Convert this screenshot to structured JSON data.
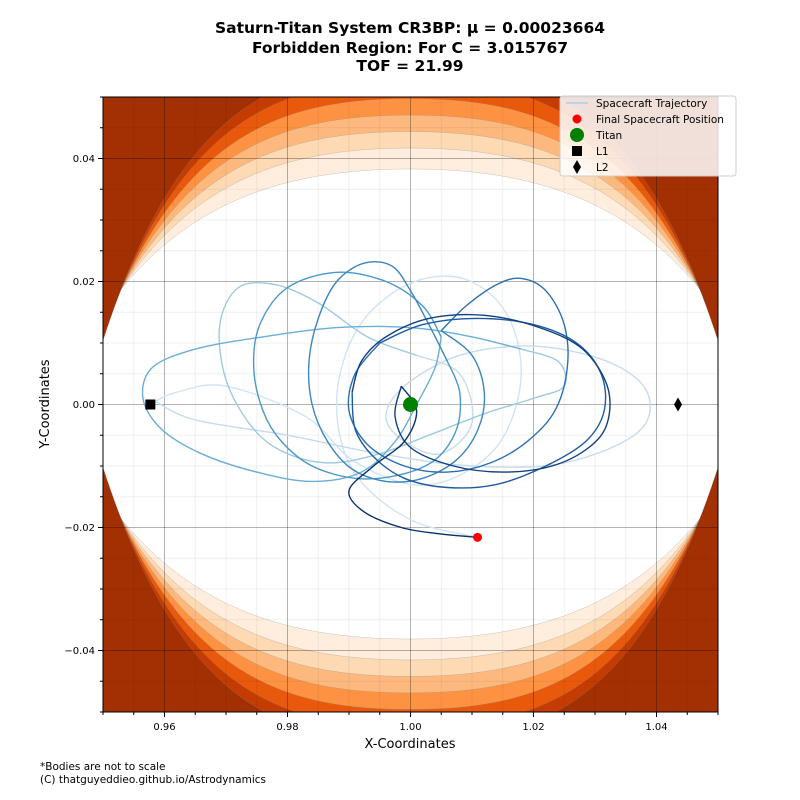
{
  "title": {
    "line1": "Saturn-Titan System CR3BP: μ = 0.00023664",
    "line2": "Forbidden Region: For C = 3.015767",
    "line3": "TOF = 21.99"
  },
  "footnote": {
    "line1": "*Bodies are not to scale",
    "line2": "(C) thatguyeddieo.github.io/Astrodynamics"
  },
  "chart_data": {
    "type": "contour",
    "xlabel": "X-Coordinates",
    "ylabel": "Y-Coordinates",
    "xlim": [
      0.95,
      1.05
    ],
    "ylim": [
      -0.05,
      0.05
    ],
    "x_ticks": [
      0.96,
      0.98,
      1.0,
      1.02,
      1.04
    ],
    "x_tick_labels": [
      "0.96",
      "0.98",
      "1.00",
      "1.02",
      "1.04"
    ],
    "y_ticks": [
      0.04,
      0.02,
      0.0,
      -0.02,
      -0.04
    ],
    "y_tick_labels": [
      "0.04",
      "0.02",
      "0.00",
      "−0.02",
      "−0.04"
    ],
    "grid": true,
    "legend_position": "upper-right",
    "legend": [
      {
        "label": "Spacecraft Trajectory",
        "marker": "line",
        "color": "#b8d5ea"
      },
      {
        "label": "Final Spacecraft Position",
        "marker": "circle",
        "color": "#ff0000"
      },
      {
        "label": "Titan",
        "marker": "circle-large",
        "color": "#008000"
      },
      {
        "label": "L1",
        "marker": "square",
        "color": "#000000"
      },
      {
        "label": "L2",
        "marker": "diamond",
        "color": "#000000"
      }
    ],
    "bodies": {
      "titan": {
        "x": 1.0,
        "y": 0.0
      },
      "l1": {
        "x": 0.9577,
        "y": 0.0
      },
      "l2": {
        "x": 1.0435,
        "y": 0.0
      },
      "final_position": {
        "x": 1.0109,
        "y": -0.0216
      }
    },
    "forbidden_region": {
      "levels": [
        {
          "size": 0.0,
          "color": "#ffeedd"
        },
        {
          "size": 0.19,
          "color": "#fdd9b4"
        },
        {
          "size": 0.34,
          "color": "#fdb97d"
        },
        {
          "size": 0.49,
          "color": "#fd9243"
        },
        {
          "size": 0.64,
          "color": "#e8590c"
        },
        {
          "size": 0.8,
          "color": "#c43c02"
        },
        {
          "size": 0.93,
          "color": "#a33003"
        }
      ],
      "allowed_region": {
        "center_x": 1.002,
        "center_y": 0.0,
        "semi_x": 0.0425,
        "semi_y": 0.0285,
        "fill": "#ffffff"
      }
    },
    "trajectory_segments": [
      {
        "color": "#d2e3f3",
        "points": [
          [
            1.0109,
            -0.0216
          ],
          [
            0.9995,
            -0.0185
          ],
          [
            0.9905,
            -0.0105
          ],
          [
            0.988,
            0.001
          ],
          [
            0.9915,
            0.0125
          ],
          [
            0.9995,
            0.0195
          ],
          [
            1.0085,
            0.0205
          ],
          [
            1.0155,
            0.015
          ],
          [
            1.018,
            0.005
          ],
          [
            1.015,
            -0.0055
          ],
          [
            1.008,
            -0.0115
          ],
          [
            1.0,
            -0.013
          ],
          [
            0.9905,
            -0.009
          ],
          [
            0.983,
            -0.002
          ],
          [
            0.97,
            0.003
          ],
          [
            0.962,
            0.002
          ],
          [
            0.9585,
            0.0005
          ]
        ]
      },
      {
        "color": "#c6dbef",
        "points": [
          [
            0.9585,
            0.0005
          ],
          [
            0.965,
            -0.0025
          ],
          [
            0.98,
            -0.005
          ],
          [
            0.995,
            -0.008
          ],
          [
            1.01,
            -0.01
          ],
          [
            1.025,
            -0.0095
          ],
          [
            1.037,
            -0.0045
          ],
          [
            1.0385,
            0.002
          ],
          [
            1.032,
            0.007
          ],
          [
            1.02,
            0.0095
          ],
          [
            1.008,
            0.008
          ],
          [
            0.999,
            0.003
          ],
          [
            0.996,
            -0.002
          ],
          [
            0.999,
            -0.006
          ],
          [
            1.005,
            -0.008
          ],
          [
            1.01,
            -0.003
          ],
          [
            1.008,
            0.005
          ],
          [
            1.001,
            0.008
          ]
        ]
      },
      {
        "color": "#9ecae1",
        "points": [
          [
            1.001,
            0.008
          ],
          [
            0.993,
            0.011
          ],
          [
            0.985,
            0.0165
          ],
          [
            0.978,
            0.0195
          ],
          [
            0.972,
            0.019
          ],
          [
            0.969,
            0.013
          ],
          [
            0.97,
            0.004
          ],
          [
            0.9745,
            -0.004
          ],
          [
            0.98,
            -0.008
          ],
          [
            0.987,
            -0.0095
          ],
          [
            0.995,
            -0.008
          ],
          [
            1.003,
            -0.005
          ],
          [
            1.012,
            -0.0015
          ],
          [
            1.02,
            0.001
          ],
          [
            1.025,
            0.003
          ],
          [
            1.024,
            0.007
          ],
          [
            1.018,
            0.009
          ]
        ]
      },
      {
        "color": "#6baed6",
        "points": [
          [
            1.018,
            0.009
          ],
          [
            1.01,
            0.011
          ],
          [
            1.0,
            0.0125
          ],
          [
            0.988,
            0.0125
          ],
          [
            0.976,
            0.011
          ],
          [
            0.965,
            0.009
          ],
          [
            0.958,
            0.006
          ],
          [
            0.9565,
            0.001
          ],
          [
            0.9595,
            -0.004
          ],
          [
            0.966,
            -0.008
          ],
          [
            0.975,
            -0.011
          ],
          [
            0.984,
            -0.0125
          ],
          [
            0.992,
            -0.011
          ],
          [
            0.9975,
            -0.006
          ],
          [
            1.001,
            0.0
          ],
          [
            1.004,
            0.006
          ],
          [
            1.005,
            0.011
          ]
        ]
      },
      {
        "color": "#4a98c9",
        "points": [
          [
            1.005,
            0.011
          ],
          [
            1.002,
            0.016
          ],
          [
            0.996,
            0.02
          ],
          [
            0.988,
            0.0215
          ],
          [
            0.98,
            0.019
          ],
          [
            0.9755,
            0.013
          ],
          [
            0.9745,
            0.006
          ],
          [
            0.976,
            -0.001
          ],
          [
            0.979,
            -0.006
          ],
          [
            0.984,
            -0.01
          ],
          [
            0.991,
            -0.012
          ],
          [
            0.998,
            -0.0115
          ],
          [
            1.004,
            -0.009
          ],
          [
            1.0075,
            -0.004
          ],
          [
            1.008,
            0.002
          ],
          [
            1.006,
            0.007
          ]
        ]
      },
      {
        "color": "#3a86bf",
        "points": [
          [
            1.006,
            0.007
          ],
          [
            1.003,
            0.013
          ],
          [
            1.0,
            0.0185
          ],
          [
            0.997,
            0.0225
          ],
          [
            0.9925,
            0.023
          ],
          [
            0.988,
            0.02
          ],
          [
            0.985,
            0.014
          ],
          [
            0.9835,
            0.007
          ],
          [
            0.984,
            0.0
          ],
          [
            0.9865,
            -0.006
          ],
          [
            0.9905,
            -0.0105
          ],
          [
            0.996,
            -0.0125
          ],
          [
            1.002,
            -0.012
          ],
          [
            1.0075,
            -0.009
          ],
          [
            1.011,
            -0.004
          ],
          [
            1.012,
            0.002
          ],
          [
            1.01,
            0.008
          ],
          [
            1.005,
            0.012
          ]
        ]
      },
      {
        "color": "#2a6fb0",
        "points": [
          [
            1.005,
            0.012
          ],
          [
            1.009,
            0.016
          ],
          [
            1.014,
            0.0195
          ],
          [
            1.018,
            0.0205
          ],
          [
            1.022,
            0.0185
          ],
          [
            1.025,
            0.013
          ],
          [
            1.0255,
            0.006
          ],
          [
            1.0235,
            -0.001
          ],
          [
            1.019,
            -0.006
          ],
          [
            1.013,
            -0.0095
          ],
          [
            1.006,
            -0.011
          ],
          [
            0.999,
            -0.01
          ],
          [
            0.993,
            -0.0065
          ],
          [
            0.99,
            -0.001
          ],
          [
            0.991,
            0.005
          ],
          [
            0.995,
            0.01
          ]
        ]
      },
      {
        "color": "#1d5a9e",
        "points": [
          [
            0.995,
            0.01
          ],
          [
            1.002,
            0.013
          ],
          [
            1.011,
            0.014
          ],
          [
            1.02,
            0.013
          ],
          [
            1.027,
            0.01
          ],
          [
            1.031,
            0.005
          ],
          [
            1.0315,
            -0.001
          ],
          [
            1.0285,
            -0.006
          ],
          [
            1.022,
            -0.01
          ],
          [
            1.014,
            -0.013
          ],
          [
            1.006,
            -0.0135
          ],
          [
            0.999,
            -0.012
          ],
          [
            0.994,
            -0.0085
          ],
          [
            0.991,
            -0.004
          ],
          [
            0.9905,
            0.002
          ]
        ]
      },
      {
        "color": "#103f80",
        "points": [
          [
            0.9905,
            0.002
          ],
          [
            0.992,
            0.007
          ],
          [
            0.996,
            0.011
          ],
          [
            1.003,
            0.014
          ],
          [
            1.012,
            0.0145
          ],
          [
            1.021,
            0.0125
          ],
          [
            1.028,
            0.009
          ],
          [
            1.032,
            0.003
          ],
          [
            1.032,
            -0.003
          ],
          [
            1.029,
            -0.007
          ],
          [
            1.023,
            -0.01
          ],
          [
            1.015,
            -0.011
          ],
          [
            1.007,
            -0.01
          ],
          [
            1.0,
            -0.007
          ],
          [
            0.9975,
            -0.002
          ],
          [
            0.9985,
            0.003
          ]
        ]
      },
      {
        "color": "#08306b",
        "points": [
          [
            0.9985,
            0.003
          ],
          [
            1.001,
            -0.001
          ],
          [
            0.999,
            -0.006
          ],
          [
            0.994,
            -0.01
          ],
          [
            0.99,
            -0.014
          ],
          [
            0.9925,
            -0.0175
          ],
          [
            0.9985,
            -0.02
          ],
          [
            1.0045,
            -0.021
          ],
          [
            1.0109,
            -0.0216
          ]
        ]
      }
    ]
  }
}
